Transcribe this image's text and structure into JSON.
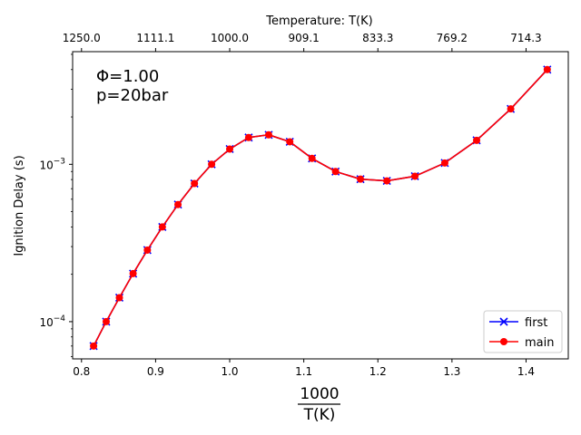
{
  "chart_data": {
    "type": "line",
    "title": "",
    "top_axis_label": "Temperature: T(K)",
    "top_axis_ticks": [
      "1250.0",
      "1111.1",
      "1000.0",
      "909.1",
      "833.3",
      "769.2",
      "714.3"
    ],
    "top_axis_tick_positions": [
      0.8,
      0.9,
      1.0,
      1.1,
      1.2,
      1.3,
      1.4
    ],
    "xlabel_numerator": "1000",
    "xlabel_denominator": "T(K)",
    "ylabel": "Ignition Delay (s)",
    "x_ticks": [
      "0.8",
      "0.9",
      "1.0",
      "1.1",
      "1.2",
      "1.3",
      "1.4"
    ],
    "y_ticks": [
      {
        "value": 0.0001,
        "base": "10",
        "exp": "−4"
      },
      {
        "value": 0.001,
        "base": "10",
        "exp": "−3"
      }
    ],
    "xlim": [
      0.788,
      1.457
    ],
    "ylim": [
      5.8e-05,
      0.0052
    ],
    "yscale": "log",
    "grid": false,
    "legend_position": "lower-right",
    "annotations": [
      "Φ=1.00",
      "p=20bar"
    ],
    "x": [
      0.8163,
      0.8333,
      0.8511,
      0.8696,
      0.8889,
      0.9091,
      0.9302,
      0.9524,
      0.9756,
      1.0,
      1.0256,
      1.0526,
      1.0811,
      1.1111,
      1.1429,
      1.1765,
      1.2121,
      1.25,
      1.2903,
      1.3333,
      1.3793,
      1.4286
    ],
    "series": [
      {
        "name": "first",
        "color": "#0000ff",
        "marker": "x",
        "values": [
          7e-05,
          0.0001,
          0.000142,
          0.000202,
          0.000285,
          0.0004,
          0.000555,
          0.000755,
          0.001,
          0.00125,
          0.00148,
          0.00154,
          0.00139,
          0.00109,
          0.0009,
          0.000805,
          0.000785,
          0.00084,
          0.00102,
          0.00142,
          0.00225,
          0.004
        ]
      },
      {
        "name": "main",
        "color": "#ff0000",
        "marker": "o",
        "values": [
          7e-05,
          0.0001,
          0.000142,
          0.000202,
          0.000285,
          0.0004,
          0.000555,
          0.000755,
          0.001,
          0.00125,
          0.00148,
          0.00154,
          0.00139,
          0.00109,
          0.0009,
          0.000805,
          0.000785,
          0.00084,
          0.00102,
          0.00142,
          0.00225,
          0.004
        ]
      }
    ]
  }
}
